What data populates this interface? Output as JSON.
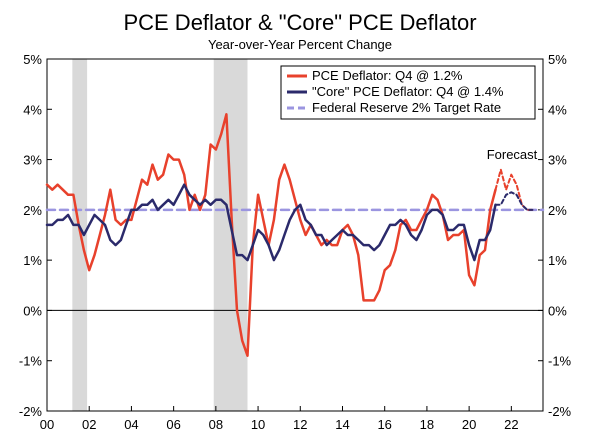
{
  "chart_data": {
    "type": "line",
    "title": "PCE Deflator & \"Core\" PCE Deflator",
    "subtitle": "Year-over-Year Percent Change",
    "xlabel": "",
    "ylabel": "",
    "xlim": [
      2000,
      2023.5
    ],
    "ylim": [
      -2,
      5
    ],
    "x_ticks": [
      {
        "value": 2000,
        "label": "00"
      },
      {
        "value": 2002,
        "label": "02"
      },
      {
        "value": 2004,
        "label": "04"
      },
      {
        "value": 2006,
        "label": "06"
      },
      {
        "value": 2008,
        "label": "08"
      },
      {
        "value": 2010,
        "label": "10"
      },
      {
        "value": 2012,
        "label": "12"
      },
      {
        "value": 2014,
        "label": "14"
      },
      {
        "value": 2016,
        "label": "16"
      },
      {
        "value": 2018,
        "label": "18"
      },
      {
        "value": 2020,
        "label": "20"
      },
      {
        "value": 2022,
        "label": "22"
      }
    ],
    "y_ticks_left": [
      "5%",
      "4%",
      "3%",
      "2%",
      "1%",
      "0%",
      "-1%",
      "-2%"
    ],
    "y_ticks_right": [
      "5%",
      "4%",
      "3%",
      "2%",
      "1%",
      "0%",
      "-1%",
      "-2%"
    ],
    "y_tick_values": [
      5,
      4,
      3,
      2,
      1,
      0,
      -1,
      -2
    ],
    "recessions": [
      [
        2001.2,
        2001.9
      ],
      [
        2007.9,
        2009.5
      ]
    ],
    "forecast_start": 2021.25,
    "annotation": "Forecast",
    "colors": {
      "pce": "#e8412c",
      "core": "#2b2a6b",
      "target": "#9b95e0",
      "recession": "#d9d9d9"
    },
    "series": [
      {
        "name": "PCE Deflator: Q4 @ 1.2%",
        "color": "#e8412c",
        "style": "solid",
        "x": [
          2000,
          2000.25,
          2000.5,
          2000.75,
          2001,
          2001.25,
          2001.5,
          2001.75,
          2002,
          2002.25,
          2002.5,
          2002.75,
          2003,
          2003.25,
          2003.5,
          2003.75,
          2004,
          2004.25,
          2004.5,
          2004.75,
          2005,
          2005.25,
          2005.5,
          2005.75,
          2006,
          2006.25,
          2006.5,
          2006.75,
          2007,
          2007.25,
          2007.5,
          2007.75,
          2008,
          2008.25,
          2008.5,
          2008.75,
          2009,
          2009.25,
          2009.5,
          2009.75,
          2010,
          2010.25,
          2010.5,
          2010.75,
          2011,
          2011.25,
          2011.5,
          2011.75,
          2012,
          2012.25,
          2012.5,
          2012.75,
          2013,
          2013.25,
          2013.5,
          2013.75,
          2014,
          2014.25,
          2014.5,
          2014.75,
          2015,
          2015.25,
          2015.5,
          2015.75,
          2016,
          2016.25,
          2016.5,
          2016.75,
          2017,
          2017.25,
          2017.5,
          2017.75,
          2018,
          2018.25,
          2018.5,
          2018.75,
          2019,
          2019.25,
          2019.5,
          2019.75,
          2020,
          2020.25,
          2020.5,
          2020.75,
          2021,
          2021.25
        ],
        "values": [
          2.5,
          2.4,
          2.5,
          2.4,
          2.3,
          2.3,
          1.7,
          1.2,
          0.8,
          1.1,
          1.5,
          1.9,
          2.4,
          1.8,
          1.7,
          1.8,
          1.8,
          2.2,
          2.6,
          2.5,
          2.9,
          2.6,
          2.7,
          3.1,
          3.0,
          3.0,
          2.7,
          2.0,
          2.3,
          2.0,
          2.3,
          3.3,
          3.2,
          3.5,
          3.9,
          1.8,
          0.0,
          -0.6,
          -0.9,
          1.3,
          2.3,
          1.8,
          1.3,
          1.8,
          2.6,
          2.9,
          2.6,
          2.2,
          1.8,
          1.5,
          1.7,
          1.5,
          1.3,
          1.4,
          1.3,
          1.3,
          1.6,
          1.7,
          1.5,
          1.1,
          0.2,
          0.2,
          0.2,
          0.4,
          0.8,
          0.9,
          1.2,
          1.7,
          1.8,
          1.6,
          1.6,
          1.8,
          2.0,
          2.3,
          2.2,
          1.9,
          1.4,
          1.5,
          1.5,
          1.6,
          0.7,
          0.5,
          1.1,
          1.2,
          2.0,
          2.4
        ]
      },
      {
        "name": "\"Core\" PCE Deflator: Q4 @ 1.4%",
        "color": "#2b2a6b",
        "style": "solid",
        "x": [
          2000,
          2000.25,
          2000.5,
          2000.75,
          2001,
          2001.25,
          2001.5,
          2001.75,
          2002,
          2002.25,
          2002.5,
          2002.75,
          2003,
          2003.25,
          2003.5,
          2003.75,
          2004,
          2004.25,
          2004.5,
          2004.75,
          2005,
          2005.25,
          2005.5,
          2005.75,
          2006,
          2006.25,
          2006.5,
          2006.75,
          2007,
          2007.25,
          2007.5,
          2007.75,
          2008,
          2008.25,
          2008.5,
          2008.75,
          2009,
          2009.25,
          2009.5,
          2009.75,
          2010,
          2010.25,
          2010.5,
          2010.75,
          2011,
          2011.25,
          2011.5,
          2011.75,
          2012,
          2012.25,
          2012.5,
          2012.75,
          2013,
          2013.25,
          2013.5,
          2013.75,
          2014,
          2014.25,
          2014.5,
          2014.75,
          2015,
          2015.25,
          2015.5,
          2015.75,
          2016,
          2016.25,
          2016.5,
          2016.75,
          2017,
          2017.25,
          2017.5,
          2017.75,
          2018,
          2018.25,
          2018.5,
          2018.75,
          2019,
          2019.25,
          2019.5,
          2019.75,
          2020,
          2020.25,
          2020.5,
          2020.75,
          2021,
          2021.25
        ],
        "values": [
          1.7,
          1.7,
          1.8,
          1.8,
          1.9,
          1.7,
          1.7,
          1.5,
          1.7,
          1.9,
          1.8,
          1.7,
          1.4,
          1.3,
          1.4,
          1.7,
          2.0,
          2.0,
          2.1,
          2.1,
          2.2,
          2.0,
          2.1,
          2.2,
          2.1,
          2.3,
          2.5,
          2.3,
          2.2,
          2.1,
          2.2,
          2.1,
          2.2,
          2.2,
          2.1,
          1.6,
          1.1,
          1.1,
          1.0,
          1.3,
          1.6,
          1.5,
          1.3,
          1.0,
          1.2,
          1.5,
          1.8,
          2.0,
          2.1,
          1.8,
          1.7,
          1.5,
          1.5,
          1.3,
          1.4,
          1.5,
          1.6,
          1.5,
          1.5,
          1.4,
          1.3,
          1.3,
          1.2,
          1.3,
          1.5,
          1.7,
          1.7,
          1.8,
          1.7,
          1.5,
          1.4,
          1.6,
          1.9,
          2.0,
          2.0,
          1.9,
          1.6,
          1.6,
          1.7,
          1.7,
          1.3,
          1.0,
          1.4,
          1.4,
          1.6,
          2.1
        ]
      },
      {
        "name": "PCE Forecast",
        "color": "#e8412c",
        "style": "dashed",
        "x": [
          2021.25,
          2021.5,
          2021.75,
          2022,
          2022.25,
          2022.5,
          2022.75,
          2023
        ],
        "values": [
          2.4,
          2.8,
          2.4,
          2.7,
          2.5,
          2.1,
          2.0,
          2.0
        ]
      },
      {
        "name": "Core Forecast",
        "color": "#2b2a6b",
        "style": "dashed",
        "x": [
          2021.25,
          2021.5,
          2021.75,
          2022,
          2022.25,
          2022.5,
          2022.75,
          2023
        ],
        "values": [
          2.1,
          2.1,
          2.3,
          2.35,
          2.3,
          2.1,
          2.0,
          2.0
        ]
      },
      {
        "name": "Federal Reserve 2% Target Rate",
        "color": "#9b95e0",
        "style": "dashed",
        "x": [
          2000,
          2023.5
        ],
        "values": [
          2,
          2
        ]
      }
    ],
    "legend": {
      "placement": "top-right",
      "entries": [
        {
          "label": "PCE Deflator: Q4 @ 1.2%",
          "color": "#e8412c",
          "style": "solid"
        },
        {
          "label": "\"Core\" PCE Deflator: Q4 @ 1.4%",
          "color": "#2b2a6b",
          "style": "solid"
        },
        {
          "label": "Federal Reserve 2% Target Rate",
          "color": "#9b95e0",
          "style": "dashed"
        }
      ]
    }
  }
}
